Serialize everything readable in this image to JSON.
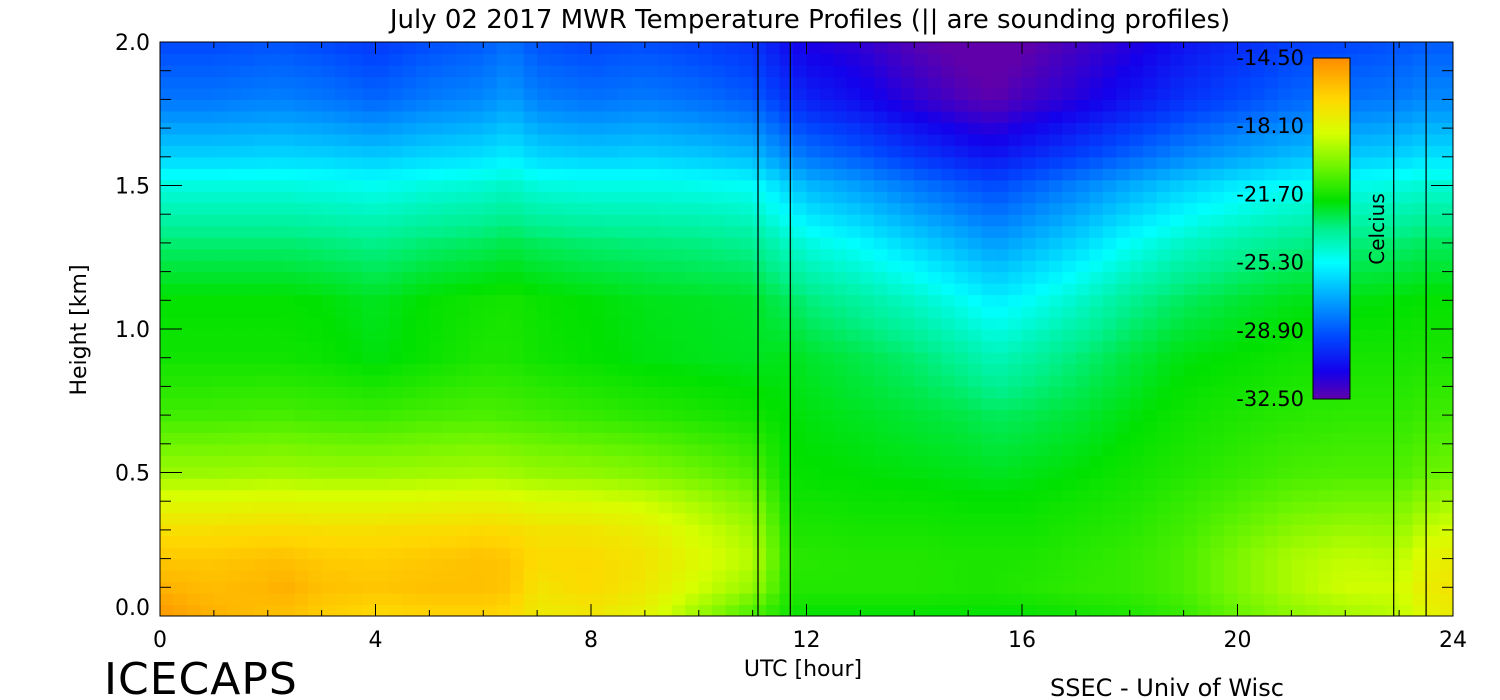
{
  "chart_data": {
    "type": "heatmap",
    "title": "July 02 2017 MWR Temperature Profiles (|| are sounding profiles)",
    "xlabel": "UTC [hour]",
    "ylabel": "Height [km]",
    "xlim": [
      0,
      24
    ],
    "ylim": [
      0,
      2.0
    ],
    "x_ticks": [
      "0",
      "4",
      "8",
      "12",
      "16",
      "20",
      "24"
    ],
    "y_ticks": [
      "0.0",
      "0.5",
      "1.0",
      "1.5",
      "2.0"
    ],
    "colorbar": {
      "label": "Celcius",
      "ticks": [
        "-14.50",
        "-18.10",
        "-21.70",
        "-25.30",
        "-28.90",
        "-32.50"
      ],
      "range": [
        -32.5,
        -14.5
      ]
    },
    "sounding_times_hr": [
      11.1,
      11.7,
      22.9,
      23.5
    ],
    "profile_hours": [
      0,
      1,
      2,
      2.3,
      3,
      4,
      5,
      6,
      6.5,
      7,
      8,
      9,
      10,
      11,
      11.7,
      12,
      13,
      14,
      15,
      15.5,
      16,
      17,
      18,
      19,
      20,
      21,
      22,
      23,
      23.5,
      24
    ],
    "heights_km": [
      0.0,
      0.1,
      0.2,
      0.3,
      0.4,
      0.5,
      0.7,
      0.9,
      1.1,
      1.3,
      1.5,
      1.6,
      1.8,
      2.0
    ],
    "temperature_C": [
      [
        -14.8,
        -15.6,
        -16.2,
        -17.0,
        -18.2,
        -19.5,
        -21.0,
        -21.8,
        -22.0,
        -23.2,
        -24.8,
        -26.2,
        -28.2,
        -29.2
      ],
      [
        -15.6,
        -15.9,
        -16.2,
        -17.0,
        -18.2,
        -19.5,
        -21.0,
        -21.8,
        -22.0,
        -23.2,
        -24.8,
        -26.2,
        -28.2,
        -29.2
      ],
      [
        -16.0,
        -15.7,
        -16.0,
        -16.9,
        -18.1,
        -19.4,
        -20.9,
        -21.8,
        -22.0,
        -23.2,
        -24.8,
        -26.1,
        -28.0,
        -29.0
      ],
      [
        -16.0,
        -15.5,
        -16.0,
        -16.9,
        -18.1,
        -19.4,
        -20.9,
        -21.8,
        -22.0,
        -23.2,
        -24.8,
        -26.1,
        -28.0,
        -29.0
      ],
      [
        -16.4,
        -16.0,
        -16.3,
        -17.0,
        -18.2,
        -19.5,
        -21.0,
        -21.9,
        -22.1,
        -23.3,
        -24.9,
        -26.2,
        -28.2,
        -29.2
      ],
      [
        -16.8,
        -16.2,
        -16.4,
        -17.0,
        -18.2,
        -19.5,
        -21.1,
        -22.2,
        -22.4,
        -23.5,
        -25.1,
        -26.4,
        -28.6,
        -29.6
      ],
      [
        -16.6,
        -16.0,
        -16.2,
        -16.9,
        -18.1,
        -19.4,
        -20.9,
        -21.9,
        -22.0,
        -23.2,
        -24.8,
        -26.1,
        -28.1,
        -29.1
      ],
      [
        -16.6,
        -16.0,
        -16.0,
        -16.8,
        -18.0,
        -19.3,
        -20.8,
        -21.6,
        -21.8,
        -23.0,
        -24.6,
        -25.9,
        -27.8,
        -28.8
      ],
      [
        -16.8,
        -16.2,
        -16.2,
        -16.9,
        -18.1,
        -19.4,
        -20.9,
        -21.6,
        -21.7,
        -22.8,
        -24.4,
        -25.6,
        -27.4,
        -28.4
      ],
      [
        -17.6,
        -17.2,
        -16.8,
        -17.2,
        -18.3,
        -19.6,
        -21.0,
        -21.8,
        -21.9,
        -23.0,
        -24.8,
        -26.1,
        -28.0,
        -29.0
      ],
      [
        -17.4,
        -16.8,
        -16.8,
        -17.3,
        -18.4,
        -19.7,
        -21.2,
        -22.0,
        -22.1,
        -23.2,
        -24.9,
        -26.3,
        -28.3,
        -29.3
      ],
      [
        -18.0,
        -17.4,
        -17.2,
        -17.7,
        -18.7,
        -19.9,
        -21.4,
        -22.2,
        -22.3,
        -23.3,
        -24.9,
        -26.2,
        -28.1,
        -29.1
      ],
      [
        -19.6,
        -18.6,
        -18.2,
        -18.6,
        -19.3,
        -20.3,
        -21.6,
        -22.3,
        -22.4,
        -23.4,
        -25.0,
        -26.4,
        -28.4,
        -29.4
      ],
      [
        -21.0,
        -19.6,
        -19.0,
        -19.4,
        -20.0,
        -20.8,
        -21.8,
        -22.4,
        -22.5,
        -23.6,
        -25.2,
        -26.7,
        -28.8,
        -29.8
      ],
      [
        -21.8,
        -21.5,
        -21.4,
        -21.6,
        -21.8,
        -22.0,
        -22.1,
        -22.3,
        -23.0,
        -24.4,
        -26.3,
        -27.8,
        -29.8,
        -30.8
      ],
      [
        -22.0,
        -21.5,
        -21.4,
        -21.6,
        -21.8,
        -22.0,
        -22.2,
        -22.5,
        -23.3,
        -24.8,
        -26.8,
        -28.2,
        -30.2,
        -31.2
      ],
      [
        -22.0,
        -21.5,
        -21.5,
        -21.7,
        -21.9,
        -22.1,
        -22.4,
        -22.8,
        -23.8,
        -25.4,
        -27.4,
        -28.8,
        -30.8,
        -31.6
      ],
      [
        -22.0,
        -21.5,
        -21.5,
        -21.7,
        -21.9,
        -22.2,
        -22.6,
        -23.2,
        -24.4,
        -26.2,
        -28.2,
        -29.6,
        -31.6,
        -32.3
      ],
      [
        -22.0,
        -21.6,
        -21.6,
        -21.8,
        -22.0,
        -22.3,
        -22.8,
        -23.8,
        -25.2,
        -27.0,
        -28.9,
        -30.3,
        -32.2,
        -32.8
      ],
      [
        -22.0,
        -21.6,
        -21.6,
        -21.8,
        -22.0,
        -22.4,
        -23.0,
        -24.2,
        -25.6,
        -27.4,
        -29.2,
        -30.5,
        -32.4,
        -33.0
      ],
      [
        -22.0,
        -21.5,
        -21.6,
        -21.8,
        -22.0,
        -22.3,
        -22.9,
        -23.9,
        -25.3,
        -27.0,
        -28.8,
        -30.1,
        -32.0,
        -32.6
      ],
      [
        -21.8,
        -21.3,
        -21.4,
        -21.6,
        -21.8,
        -22.1,
        -22.6,
        -23.3,
        -24.5,
        -26.2,
        -28.0,
        -29.4,
        -31.4,
        -32.0
      ],
      [
        -21.6,
        -21.2,
        -21.2,
        -21.4,
        -21.6,
        -21.8,
        -22.2,
        -22.7,
        -23.6,
        -25.2,
        -27.1,
        -28.6,
        -30.6,
        -31.4
      ],
      [
        -21.2,
        -20.8,
        -20.8,
        -21.0,
        -21.2,
        -21.5,
        -21.8,
        -22.2,
        -23.0,
        -24.4,
        -26.3,
        -27.8,
        -29.8,
        -30.6
      ],
      [
        -20.4,
        -20.0,
        -20.0,
        -20.4,
        -20.8,
        -21.2,
        -21.6,
        -22.0,
        -22.6,
        -23.9,
        -25.7,
        -27.2,
        -29.2,
        -30.0
      ],
      [
        -19.8,
        -19.2,
        -19.2,
        -19.8,
        -20.4,
        -20.9,
        -21.4,
        -21.8,
        -22.3,
        -23.5,
        -25.2,
        -26.7,
        -28.6,
        -29.5
      ],
      [
        -19.4,
        -18.6,
        -18.8,
        -19.5,
        -20.2,
        -20.8,
        -21.3,
        -21.7,
        -22.2,
        -23.3,
        -25.0,
        -26.4,
        -28.3,
        -29.3
      ],
      [
        -19.0,
        -18.6,
        -19.0,
        -19.6,
        -20.2,
        -20.8,
        -21.3,
        -21.7,
        -22.1,
        -23.2,
        -24.8,
        -26.2,
        -28.1,
        -29.0
      ],
      [
        -18.0,
        -17.6,
        -18.0,
        -18.8,
        -19.6,
        -20.4,
        -21.1,
        -21.6,
        -22.0,
        -23.0,
        -24.6,
        -25.9,
        -27.8,
        -28.8
      ],
      [
        -17.6,
        -17.2,
        -17.6,
        -18.4,
        -19.3,
        -20.2,
        -21.0,
        -21.6,
        -22.0,
        -23.0,
        -24.6,
        -25.9,
        -27.8,
        -28.8
      ]
    ]
  },
  "footer": {
    "logo_text": "ICECAPS",
    "credit": "SSEC - Univ of Wisc"
  }
}
